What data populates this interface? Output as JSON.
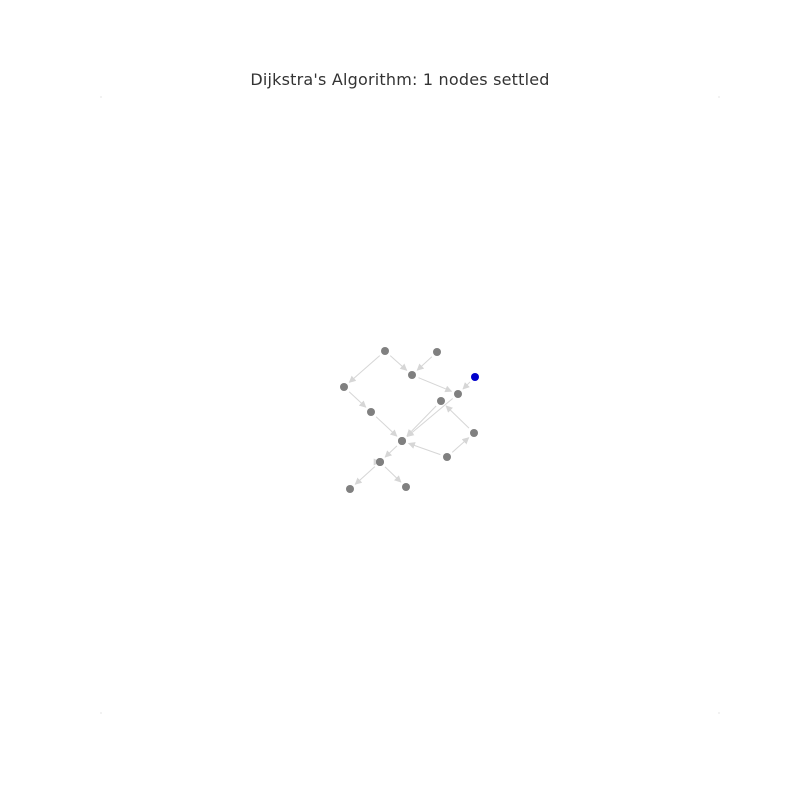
{
  "title": "Dijkstra's Algorithm: 1 nodes settled",
  "colors": {
    "background": "#ffffff",
    "node_unvisited": "#808080",
    "node_settled": "#0000cc",
    "edge": "#d6d6d6",
    "title": "#333333"
  },
  "graph": {
    "settled_count": 1,
    "nodes": [
      {
        "id": "n0",
        "state": "settled"
      },
      {
        "id": "n1",
        "state": "unvisited"
      },
      {
        "id": "n2",
        "state": "unvisited"
      },
      {
        "id": "n3",
        "state": "unvisited"
      },
      {
        "id": "n4",
        "state": "unvisited"
      },
      {
        "id": "n5",
        "state": "unvisited"
      },
      {
        "id": "n6",
        "state": "unvisited"
      },
      {
        "id": "n7",
        "state": "unvisited"
      },
      {
        "id": "n8",
        "state": "unvisited"
      },
      {
        "id": "n9",
        "state": "unvisited"
      },
      {
        "id": "n10",
        "state": "unvisited"
      },
      {
        "id": "n11",
        "state": "unvisited"
      },
      {
        "id": "n12",
        "state": "unvisited"
      },
      {
        "id": "n13",
        "state": "unvisited"
      },
      {
        "id": "n14",
        "state": "unvisited"
      },
      {
        "id": "n15",
        "state": "unvisited"
      }
    ],
    "edges": [
      {
        "from": "n0",
        "to": "n1"
      },
      {
        "from": "n2",
        "to": "n1"
      },
      {
        "from": "n4",
        "to": "n2"
      },
      {
        "from": "n3",
        "to": "n2"
      },
      {
        "from": "n3",
        "to": "n5"
      },
      {
        "from": "n5",
        "to": "n6"
      },
      {
        "from": "n8",
        "to": "n7"
      },
      {
        "from": "n7",
        "to": "n9"
      },
      {
        "from": "n9",
        "to": "n10"
      },
      {
        "from": "n10",
        "to": "n11"
      },
      {
        "from": "n8",
        "to": "n10"
      },
      {
        "from": "n1",
        "to": "n10"
      },
      {
        "from": "n13",
        "to": "n12"
      },
      {
        "from": "n11",
        "to": "n13"
      },
      {
        "from": "n13",
        "to": "n14"
      },
      {
        "from": "n6",
        "to": "n15"
      }
    ]
  }
}
